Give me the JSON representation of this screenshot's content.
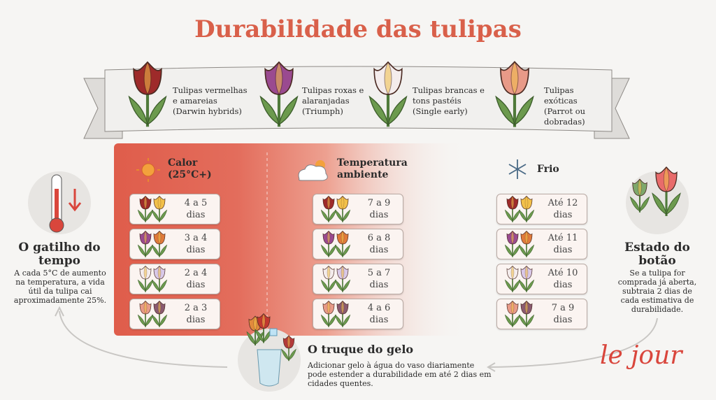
{
  "title": "Durabilidade das tulipas",
  "varieties": [
    {
      "name": "Tulipas vermelhas e amareias",
      "type": "(Darwin hybrids)"
    },
    {
      "name": "Tulipas roxas e alaranjadas",
      "type": "(Triumph)"
    },
    {
      "name": "Tulipas brancas e tons pastéis",
      "type": "(Single early)"
    },
    {
      "name": "Tulipas exóticas",
      "type": "(Parrot ou dobradas)"
    }
  ],
  "conditions": [
    {
      "label": "Calor (25°C+)",
      "durations": [
        "4 a 5 dias",
        "3 a 4 dias",
        "2 a 4 dias",
        "2 a 3 dias"
      ]
    },
    {
      "label": "Temperatura ambiente",
      "durations": [
        "7 a 9 dias",
        "6 a 8 dias",
        "5 a 7 dias",
        "4 a 6 dias"
      ]
    },
    {
      "label": "Frio",
      "durations": [
        "Até 12 dias",
        "Até 11 dias",
        "Até 10 dias",
        "7 a 9 dias"
      ]
    }
  ],
  "time_trigger": {
    "title": "O gatilho do tempo",
    "text": "A cada 5°C de aumento na temperatura, a vida útil da tulipa cai aproximadamente 25%."
  },
  "bud_state": {
    "title": "Estado do botão",
    "text": "Se a tulipa for comprada já aberta, subtraia 2 dias de cada estimativa de durabilidade."
  },
  "ice_tip": {
    "title": "O truque do gelo",
    "text": "Adicionar gelo à água do vaso diariamente pode estender a durabilidade em até 2 dias em cidades quentes."
  },
  "logo": "le jour"
}
